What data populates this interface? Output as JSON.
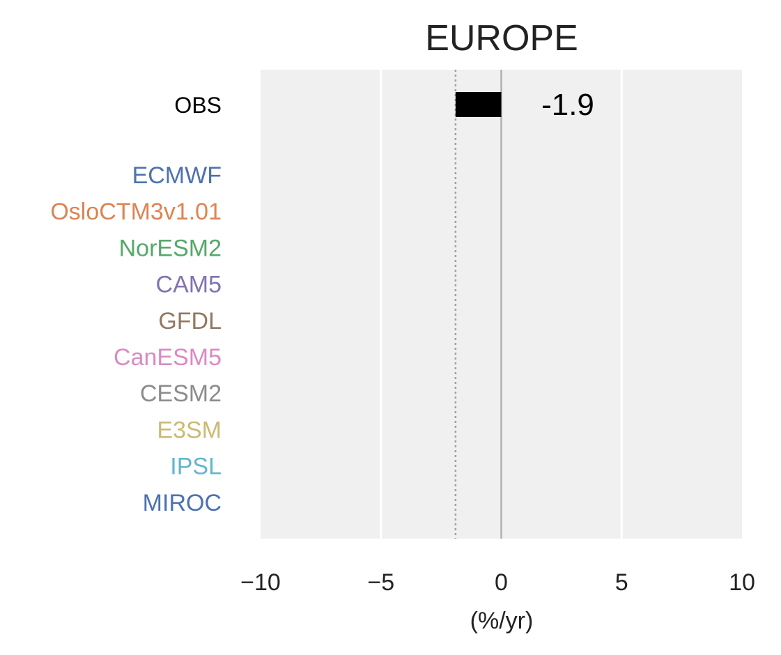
{
  "chart_data": {
    "type": "bar",
    "orientation": "horizontal",
    "title": "EUROPE",
    "xlabel": "(%/yr)",
    "ylabel": "",
    "xlim": [
      -10,
      10
    ],
    "xticks": [
      -10,
      -5,
      0,
      5,
      10
    ],
    "xtick_labels": [
      "−10",
      "−5",
      "0",
      "5",
      "10"
    ],
    "grid": true,
    "reference_line": 0,
    "obs_reference_dotted": -1.9,
    "categories": [
      "OBS",
      "ECMWF",
      "OsloCTM3v1.01",
      "NorESM2",
      "CAM5",
      "GFDL",
      "CanESM5",
      "CESM2",
      "E3SM",
      "IPSL",
      "MIROC"
    ],
    "label_colors": [
      "#000000",
      "#4c72b0",
      "#dd8452",
      "#55a868",
      "#8172b3",
      "#937860",
      "#da8bc3",
      "#8c8c8c",
      "#ccb974",
      "#64b5cd",
      "#4c72b0"
    ],
    "values": [
      -1.9,
      null,
      null,
      null,
      null,
      null,
      null,
      null,
      null,
      null,
      null
    ],
    "bar_color": "#000000",
    "value_labels": [
      "-1.9",
      "",
      "",
      "",
      "",
      "",
      "",
      "",
      "",
      "",
      ""
    ]
  }
}
